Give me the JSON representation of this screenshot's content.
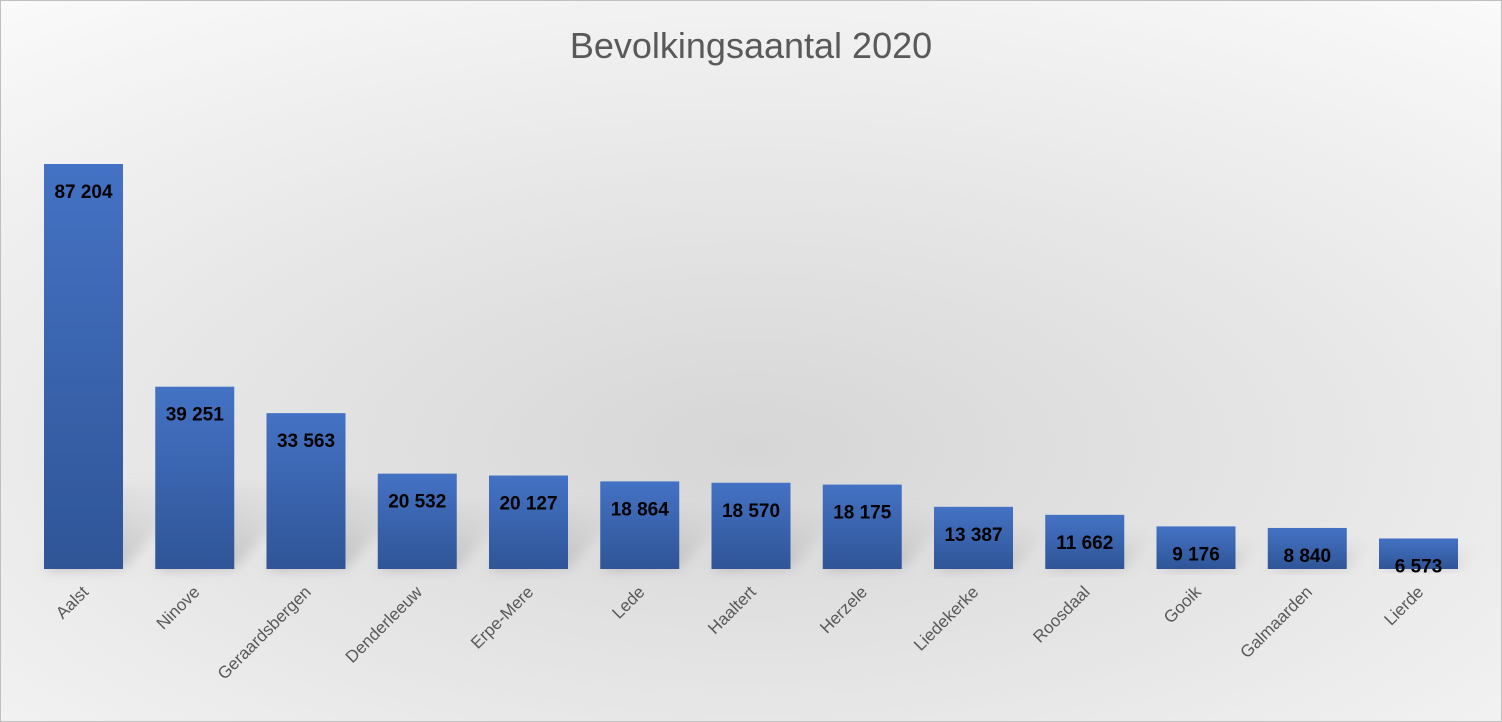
{
  "chart_data": {
    "type": "bar",
    "title": "Bevolkingsaantal 2020",
    "categories": [
      "Aalst",
      "Ninove",
      "Geraardsbergen",
      "Denderleeuw",
      "Erpe-Mere",
      "Lede",
      "Haaltert",
      "Herzele",
      "Liedekerke",
      "Roosdaal",
      "Gooik",
      "Galmaarden",
      "Lierde"
    ],
    "values": [
      87204,
      39251,
      33563,
      20532,
      20127,
      18864,
      18570,
      18175,
      13387,
      11662,
      9176,
      8840,
      6573
    ],
    "value_labels": [
      "87 204",
      "39 251",
      "33 563",
      "20 532",
      "20 127",
      "18 864",
      "18 570",
      "18 175",
      "13 387",
      "11 662",
      "9 176",
      "8 840",
      "6 573"
    ],
    "xlabel": "",
    "ylabel": "",
    "ylim": [
      0,
      87204
    ],
    "grid": false,
    "legend": "none",
    "bar_color_top": "#4472C4",
    "bar_color_bottom": "#2F5597"
  }
}
